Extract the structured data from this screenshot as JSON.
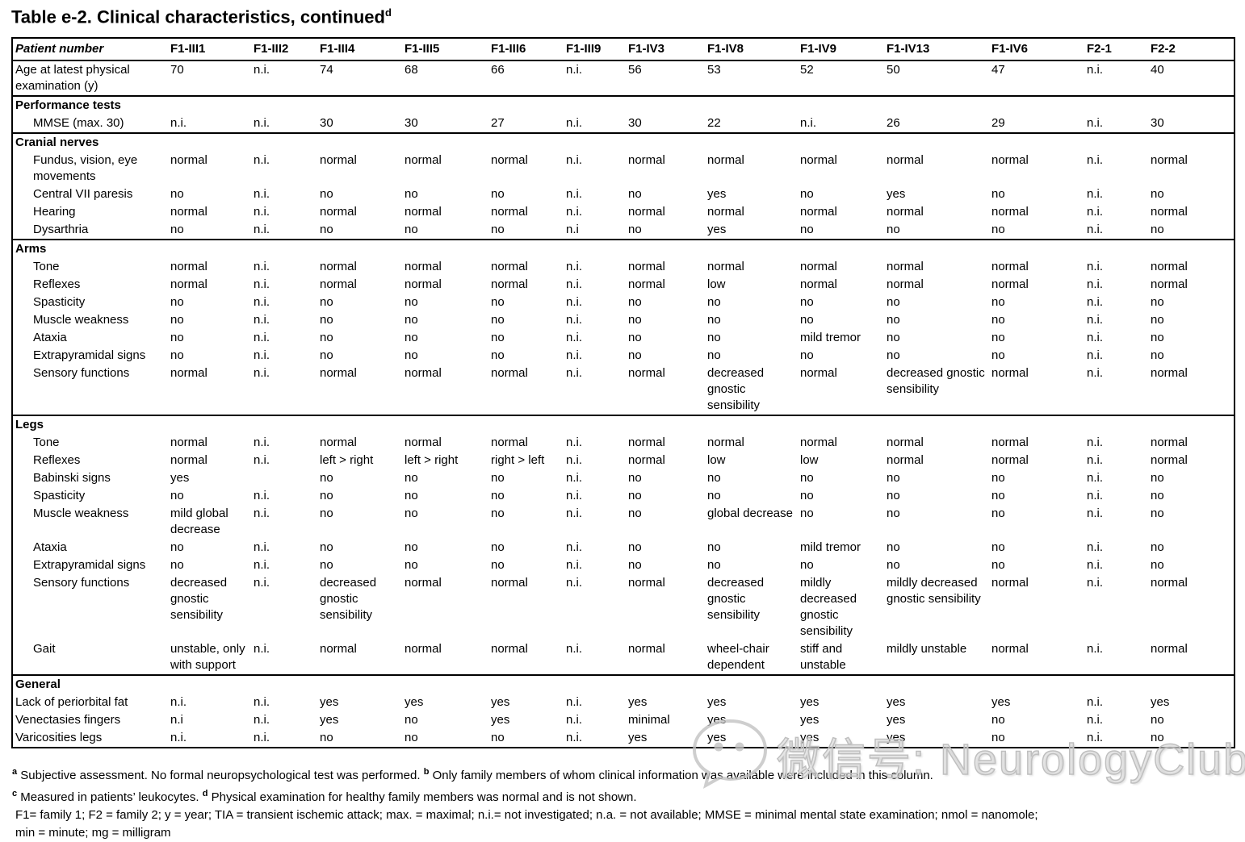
{
  "document": {
    "title": "Table e-2. Clinical characteristics, continued",
    "title_superscript": "d"
  },
  "table": {
    "columns": [
      "Patient number",
      "F1-III1",
      "F1-III2",
      "F1-III4",
      "F1-III5",
      "F1-III6",
      "F1-III9",
      "F1-IV3",
      "F1-IV8",
      "F1-IV9",
      "F1-IV13",
      "F1-IV6",
      "F2-1",
      "F2-2"
    ],
    "sections": [
      {
        "header": null,
        "rows": [
          {
            "label": "Age at latest physical examination (y)",
            "indent": false,
            "values": [
              "70",
              "n.i.",
              "74",
              "68",
              "66",
              "n.i.",
              "56",
              "53",
              "52",
              "50",
              "47",
              "n.i.",
              "40"
            ]
          }
        ]
      },
      {
        "header": "Performance tests",
        "rows": [
          {
            "label": "MMSE (max. 30)",
            "indent": true,
            "values": [
              "n.i.",
              "n.i.",
              "30",
              "30",
              "27",
              "n.i.",
              "30",
              "22",
              "n.i.",
              "26",
              "29",
              "n.i.",
              "30"
            ]
          }
        ]
      },
      {
        "header": "Cranial nerves",
        "rows": [
          {
            "label": "Fundus, vision, eye movements",
            "indent": true,
            "values": [
              "normal",
              "n.i.",
              "normal",
              "normal",
              "normal",
              "n.i.",
              "normal",
              "normal",
              "normal",
              "normal",
              "normal",
              "n.i.",
              "normal"
            ]
          },
          {
            "label": "Central VII paresis",
            "indent": true,
            "values": [
              "no",
              "n.i.",
              "no",
              "no",
              "no",
              "n.i.",
              "no",
              "yes",
              "no",
              "yes",
              "no",
              "n.i.",
              "no"
            ]
          },
          {
            "label": "Hearing",
            "indent": true,
            "values": [
              "normal",
              "n.i.",
              "normal",
              "normal",
              "normal",
              "n.i.",
              "normal",
              "normal",
              "normal",
              "normal",
              "normal",
              "n.i.",
              "normal"
            ]
          },
          {
            "label": "Dysarthria",
            "indent": true,
            "values": [
              "no",
              "n.i.",
              "no",
              "no",
              "no",
              "n.i",
              "no",
              "yes",
              "no",
              "no",
              "no",
              "n.i.",
              "no"
            ]
          }
        ]
      },
      {
        "header": "Arms",
        "rows": [
          {
            "label": "Tone",
            "indent": true,
            "values": [
              "normal",
              "n.i.",
              "normal",
              "normal",
              "normal",
              "n.i.",
              "normal",
              "normal",
              "normal",
              "normal",
              "normal",
              "n.i.",
              "normal"
            ]
          },
          {
            "label": "Reflexes",
            "indent": true,
            "values": [
              "normal",
              "n.i.",
              "normal",
              "normal",
              "normal",
              "n.i.",
              "normal",
              "low",
              "normal",
              "normal",
              "normal",
              "n.i.",
              "normal"
            ]
          },
          {
            "label": "Spasticity",
            "indent": true,
            "values": [
              "no",
              "n.i.",
              "no",
              "no",
              "no",
              "n.i.",
              "no",
              "no",
              "no",
              "no",
              "no",
              "n.i.",
              "no"
            ]
          },
          {
            "label": "Muscle weakness",
            "indent": true,
            "values": [
              "no",
              "n.i.",
              "no",
              "no",
              "no",
              "n.i.",
              "no",
              "no",
              "no",
              "no",
              "no",
              "n.i.",
              "no"
            ]
          },
          {
            "label": "Ataxia",
            "indent": true,
            "values": [
              "no",
              "n.i.",
              "no",
              "no",
              "no",
              "n.i.",
              "no",
              "no",
              "mild tremor",
              "no",
              "no",
              "n.i.",
              "no"
            ]
          },
          {
            "label": "Extrapyramidal signs",
            "indent": true,
            "values": [
              "no",
              "n.i.",
              "no",
              "no",
              "no",
              "n.i.",
              "no",
              "no",
              "no",
              "no",
              "no",
              "n.i.",
              "no"
            ]
          },
          {
            "label": "Sensory functions",
            "indent": true,
            "values": [
              "normal",
              "n.i.",
              "normal",
              "normal",
              "normal",
              "n.i.",
              "normal",
              "decreased gnostic sensibility",
              "normal",
              "decreased gnostic sensibility",
              "normal",
              "n.i.",
              "normal"
            ]
          }
        ]
      },
      {
        "header": "Legs",
        "rows": [
          {
            "label": "Tone",
            "indent": true,
            "values": [
              "normal",
              "n.i.",
              "normal",
              "normal",
              "normal",
              "n.i.",
              "normal",
              "normal",
              "normal",
              "normal",
              "normal",
              "n.i.",
              "normal"
            ]
          },
          {
            "label": "Reflexes",
            "indent": true,
            "values": [
              "normal",
              "n.i.",
              "left > right",
              "left > right",
              "right > left",
              "n.i.",
              "normal",
              "low",
              "low",
              "normal",
              "normal",
              "n.i.",
              "normal"
            ]
          },
          {
            "label": "Babinski signs",
            "indent": true,
            "values": [
              "yes",
              "",
              "no",
              "no",
              "no",
              "n.i.",
              "no",
              "no",
              "no",
              "no",
              "no",
              "n.i.",
              "no"
            ]
          },
          {
            "label": "Spasticity",
            "indent": true,
            "values": [
              "no",
              "n.i.",
              "no",
              "no",
              "no",
              "n.i.",
              "no",
              "no",
              "no",
              "no",
              "no",
              "n.i.",
              "no"
            ]
          },
          {
            "label": "Muscle weakness",
            "indent": true,
            "values": [
              "mild global decrease",
              "n.i.",
              "no",
              "no",
              "no",
              "n.i.",
              "no",
              "global decrease",
              "no",
              "no",
              "no",
              "n.i.",
              "no"
            ]
          },
          {
            "label": "Ataxia",
            "indent": true,
            "values": [
              "no",
              "n.i.",
              "no",
              "no",
              "no",
              "n.i.",
              "no",
              "no",
              "mild tremor",
              "no",
              "no",
              "n.i.",
              "no"
            ]
          },
          {
            "label": "Extrapyramidal signs",
            "indent": true,
            "values": [
              "no",
              "n.i.",
              "no",
              "no",
              "no",
              "n.i.",
              "no",
              "no",
              "no",
              "no",
              "no",
              "n.i.",
              "no"
            ]
          },
          {
            "label": "Sensory functions",
            "indent": true,
            "values": [
              "decreased gnostic sensibility",
              "n.i.",
              "decreased gnostic sensibility",
              "normal",
              "normal",
              "n.i.",
              "normal",
              "decreased gnostic sensibility",
              "mildly decreased gnostic sensibility",
              "mildly decreased gnostic sensibility",
              "normal",
              "n.i.",
              "normal"
            ]
          },
          {
            "label": "Gait",
            "indent": true,
            "values": [
              "unstable, only with support",
              "n.i.",
              "normal",
              "normal",
              "normal",
              "n.i.",
              "normal",
              "wheel-chair dependent",
              "stiff and unstable",
              "mildly unstable",
              "normal",
              "n.i.",
              "normal"
            ]
          }
        ]
      },
      {
        "header": "General",
        "rows": [
          {
            "label": "Lack of periorbital fat",
            "indent": false,
            "values": [
              "n.i.",
              "n.i.",
              "yes",
              "yes",
              "yes",
              "n.i.",
              "yes",
              "yes",
              "yes",
              "yes",
              "yes",
              "n.i.",
              "yes"
            ]
          },
          {
            "label": "Venectasies fingers",
            "indent": false,
            "values": [
              "n.i",
              "n.i.",
              "yes",
              "no",
              "yes",
              "n.i.",
              "minimal",
              "yes",
              "yes",
              "yes",
              "no",
              "n.i.",
              "no"
            ]
          },
          {
            "label": "Varicosities legs",
            "indent": false,
            "values": [
              "n.i.",
              "n.i.",
              "no",
              "no",
              "no",
              "n.i.",
              "yes",
              "yes",
              "yes",
              "yes",
              "no",
              "n.i.",
              "no"
            ]
          }
        ]
      }
    ]
  },
  "footnotes": [
    {
      "class": "note",
      "segments": [
        {
          "sup": "a"
        },
        {
          "text": " Subjective assessment. No formal neuropsychological test was performed.  "
        },
        {
          "sup": "b"
        },
        {
          "text": " Only family members of whom clinical information was available were included in this column."
        }
      ]
    },
    {
      "class": "note",
      "segments": [
        {
          "sup": "c"
        },
        {
          "text": " Measured in patients’ leukocytes. "
        },
        {
          "sup": "d"
        },
        {
          "text": " Physical examination for healthy family members was normal and is not shown."
        }
      ]
    },
    {
      "class": "abbr",
      "segments": [
        {
          "text": "F1= family 1; F2 = family 2; y = year; TIA = transient ischemic attack; max. = maximal; n.i.= not investigated; n.a. = not available; MMSE = minimal mental state examination; nmol = nanomole;"
        }
      ]
    },
    {
      "class": "abbr",
      "segments": [
        {
          "text": "min = minute; mg = milligram"
        }
      ]
    }
  ],
  "watermark": {
    "icon": "wechat-icon",
    "text": "微信号: NeurologyClub",
    "color": "#c8c8c8"
  }
}
